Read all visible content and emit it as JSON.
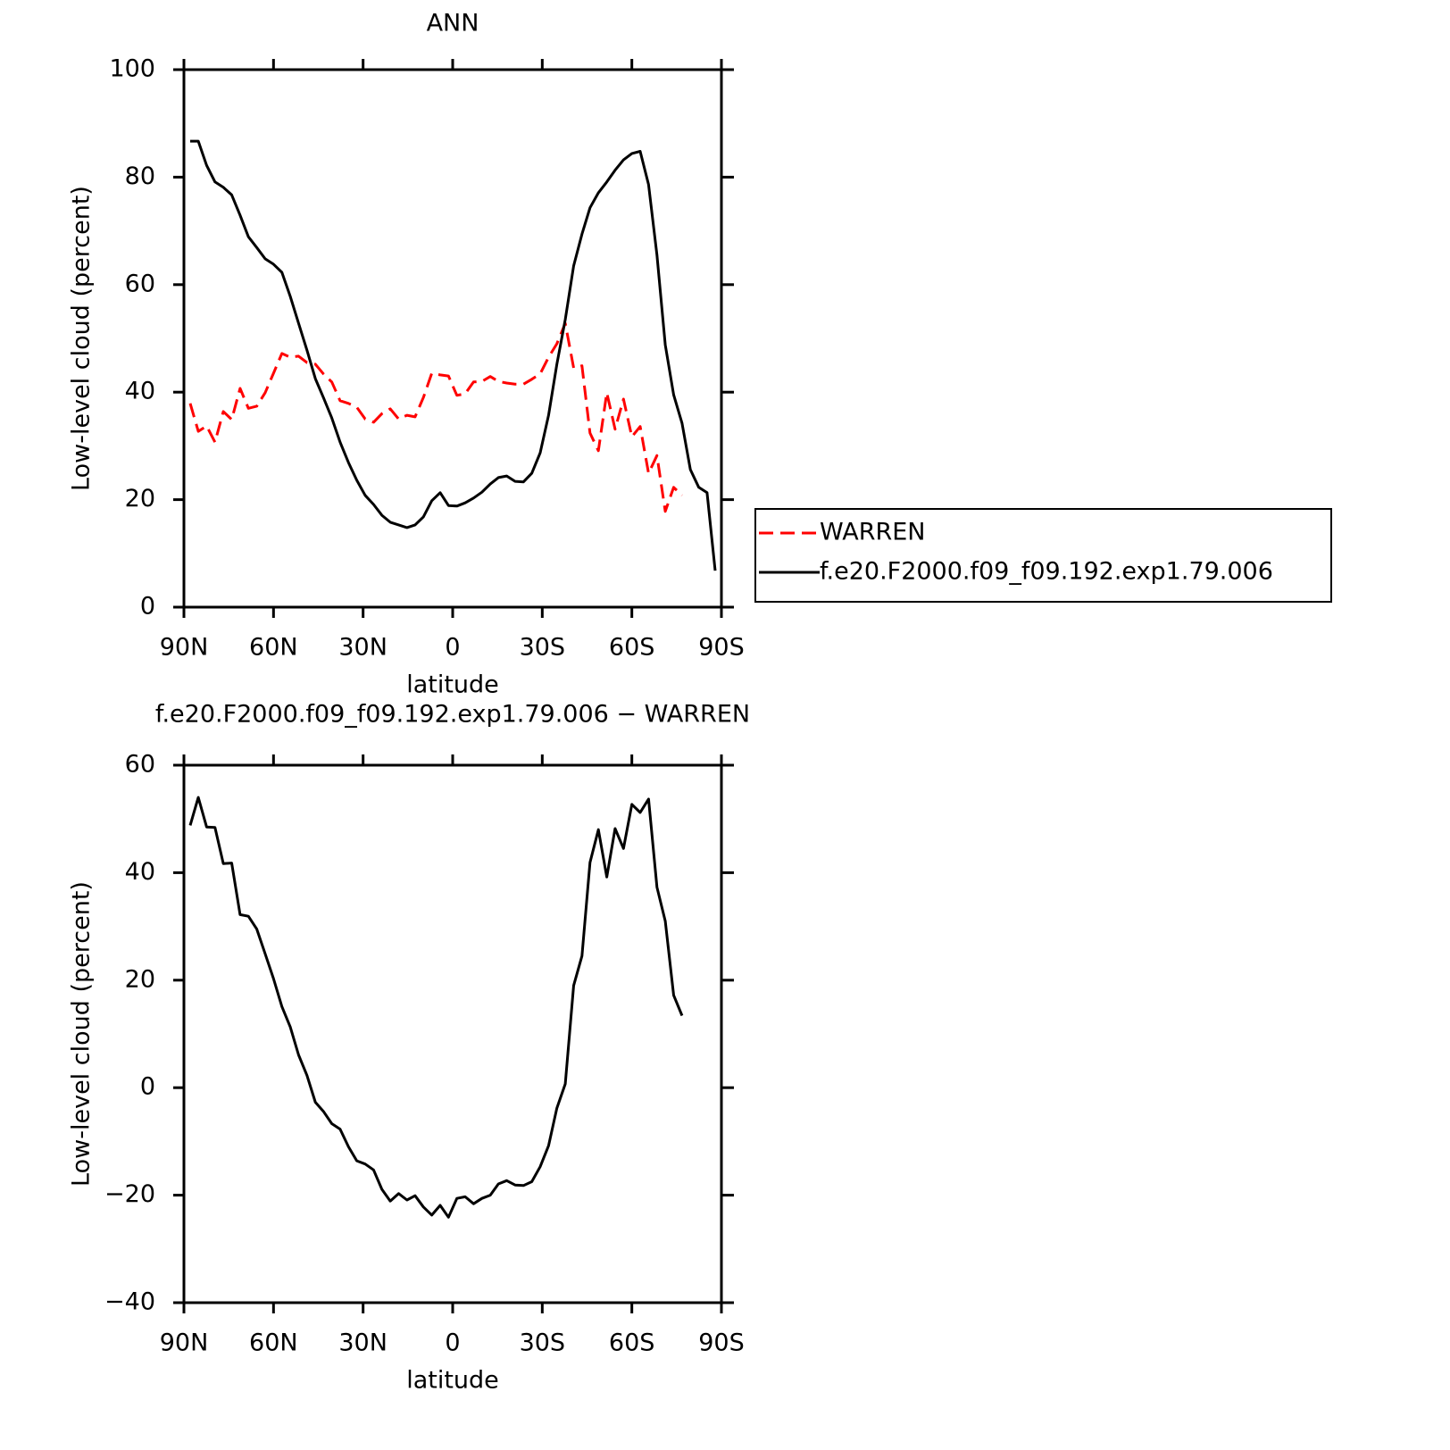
{
  "chart_data": [
    {
      "type": "line",
      "title": "ANN",
      "xlabel": "latitude",
      "ylabel": "Low-level cloud (percent)",
      "x": [
        87.9,
        85.2,
        82.4,
        79.6,
        76.8,
        74.0,
        71.2,
        68.4,
        65.6,
        62.8,
        60.0,
        57.2,
        54.4,
        51.6,
        48.8,
        46.0,
        43.3,
        40.5,
        37.7,
        34.9,
        32.1,
        29.3,
        26.5,
        23.7,
        20.9,
        18.1,
        15.3,
        12.6,
        9.8,
        7.0,
        4.2,
        1.4,
        -1.4,
        -4.2,
        -7.0,
        -9.8,
        -12.6,
        -15.3,
        -18.1,
        -20.9,
        -23.7,
        -26.5,
        -29.3,
        -32.1,
        -34.9,
        -37.7,
        -40.5,
        -43.3,
        -46.0,
        -48.8,
        -51.6,
        -54.4,
        -57.2,
        -60.0,
        -62.8,
        -65.6,
        -68.4,
        -71.2,
        -74.0,
        -76.8,
        -79.6,
        -82.4,
        -85.2,
        -87.9
      ],
      "series": [
        {
          "name": "WARREN",
          "color": "#ff0000",
          "linestyle": "dashed",
          "values": [
            37.9,
            32.7,
            33.7,
            30.7,
            36.4,
            34.9,
            40.7,
            37.0,
            37.4,
            39.9,
            43.5,
            47.2,
            46.5,
            46.7,
            45.5,
            45.2,
            43.4,
            41.9,
            38.4,
            37.9,
            37.2,
            35.0,
            34.4,
            36.0,
            36.9,
            35.0,
            35.7,
            35.4,
            39.0,
            43.5,
            43.2,
            43.0,
            39.4,
            39.7,
            41.9,
            42.0,
            42.9,
            42.0,
            41.7,
            41.5,
            41.5,
            42.4,
            43.4,
            46.5,
            49.0,
            52.8,
            44.5,
            44.9,
            32.4,
            29.1,
            39.9,
            33.1,
            38.7,
            31.7,
            33.6,
            24.9,
            28.2,
            17.8,
            22.3,
            20.8,
            null,
            null,
            null,
            null
          ]
        },
        {
          "name": "f.e20.F2000.f09_f09.192.exp1.79.006",
          "color": "#000000",
          "linestyle": "solid",
          "values": [
            86.7,
            86.7,
            82.2,
            79.1,
            78.1,
            76.7,
            72.9,
            68.9,
            66.9,
            64.8,
            63.8,
            62.3,
            57.8,
            52.8,
            47.8,
            42.5,
            39.0,
            35.2,
            30.7,
            26.9,
            23.6,
            20.8,
            19.1,
            17.1,
            15.8,
            15.3,
            14.8,
            15.3,
            16.8,
            19.8,
            21.3,
            18.9,
            18.8,
            19.4,
            20.3,
            21.4,
            22.9,
            24.1,
            24.4,
            23.4,
            23.3,
            24.9,
            28.7,
            35.7,
            45.2,
            53.5,
            63.5,
            69.4,
            74.3,
            77.1,
            79.1,
            81.3,
            83.2,
            84.4,
            84.8,
            78.6,
            65.5,
            48.8,
            39.5,
            34.2,
            25.6,
            22.3,
            21.3,
            6.8
          ]
        }
      ],
      "xlim": [
        90,
        -90
      ],
      "xticks": [
        {
          "value": 90,
          "label": "90N"
        },
        {
          "value": 60,
          "label": "60N"
        },
        {
          "value": 30,
          "label": "30N"
        },
        0,
        {
          "value": -30,
          "label": "30S"
        },
        {
          "value": -60,
          "label": "60S"
        },
        {
          "value": -90,
          "label": "90S"
        }
      ],
      "ylim": [
        0,
        100
      ],
      "yticks": [
        0,
        20,
        40,
        60,
        80,
        100
      ],
      "grid": false,
      "legend": "right"
    },
    {
      "type": "line",
      "title": "f.e20.F2000.f09_f09.192.exp1.79.006 − WARREN",
      "xlabel": "latitude",
      "ylabel": "Low-level cloud (percent)",
      "x": [
        87.9,
        85.2,
        82.4,
        79.6,
        76.8,
        74.0,
        71.2,
        68.4,
        65.6,
        62.8,
        60.0,
        57.2,
        54.4,
        51.6,
        48.8,
        46.0,
        43.3,
        40.5,
        37.7,
        34.9,
        32.1,
        29.3,
        26.5,
        23.7,
        20.9,
        18.1,
        15.3,
        12.6,
        9.8,
        7.0,
        4.2,
        1.4,
        -1.4,
        -4.2,
        -7.0,
        -9.8,
        -12.6,
        -15.3,
        -18.1,
        -20.9,
        -23.7,
        -26.5,
        -29.3,
        -32.1,
        -34.9,
        -37.7,
        -40.5,
        -43.3,
        -46.0,
        -48.8,
        -51.6,
        -54.4,
        -57.2,
        -60.0,
        -62.8,
        -65.6,
        -68.4,
        -71.2,
        -74.0,
        -76.8,
        -79.6,
        -82.4,
        -85.2,
        -87.9
      ],
      "color": "#000000",
      "values": [
        48.8,
        54.0,
        48.5,
        48.4,
        41.7,
        41.8,
        32.2,
        31.9,
        29.5,
        24.9,
        20.3,
        15.1,
        11.3,
        6.1,
        2.3,
        -2.7,
        -4.4,
        -6.7,
        -7.7,
        -11.0,
        -13.6,
        -14.2,
        -15.3,
        -18.9,
        -21.1,
        -19.7,
        -20.9,
        -20.1,
        -22.2,
        -23.7,
        -21.9,
        -24.1,
        -20.6,
        -20.3,
        -21.6,
        -20.6,
        -20.0,
        -17.9,
        -17.3,
        -18.1,
        -18.2,
        -17.5,
        -14.7,
        -10.8,
        -3.8,
        0.7,
        19.0,
        24.5,
        41.9,
        48.0,
        39.2,
        48.2,
        44.5,
        52.7,
        51.2,
        53.7,
        37.3,
        31.0,
        17.2,
        13.4,
        null,
        null,
        null,
        null
      ],
      "xlim": [
        90,
        -90
      ],
      "xticks": [
        {
          "value": 90,
          "label": "90N"
        },
        {
          "value": 60,
          "label": "60N"
        },
        {
          "value": 30,
          "label": "30N"
        },
        0,
        {
          "value": -30,
          "label": "30S"
        },
        {
          "value": -60,
          "label": "60S"
        },
        {
          "value": -90,
          "label": "90S"
        }
      ],
      "ylim": [
        -40,
        60
      ],
      "yticks": [
        {
          "value": -40,
          "label": "−40"
        },
        {
          "value": -20,
          "label": "−20"
        },
        0,
        20,
        40,
        60
      ],
      "grid": false
    }
  ]
}
